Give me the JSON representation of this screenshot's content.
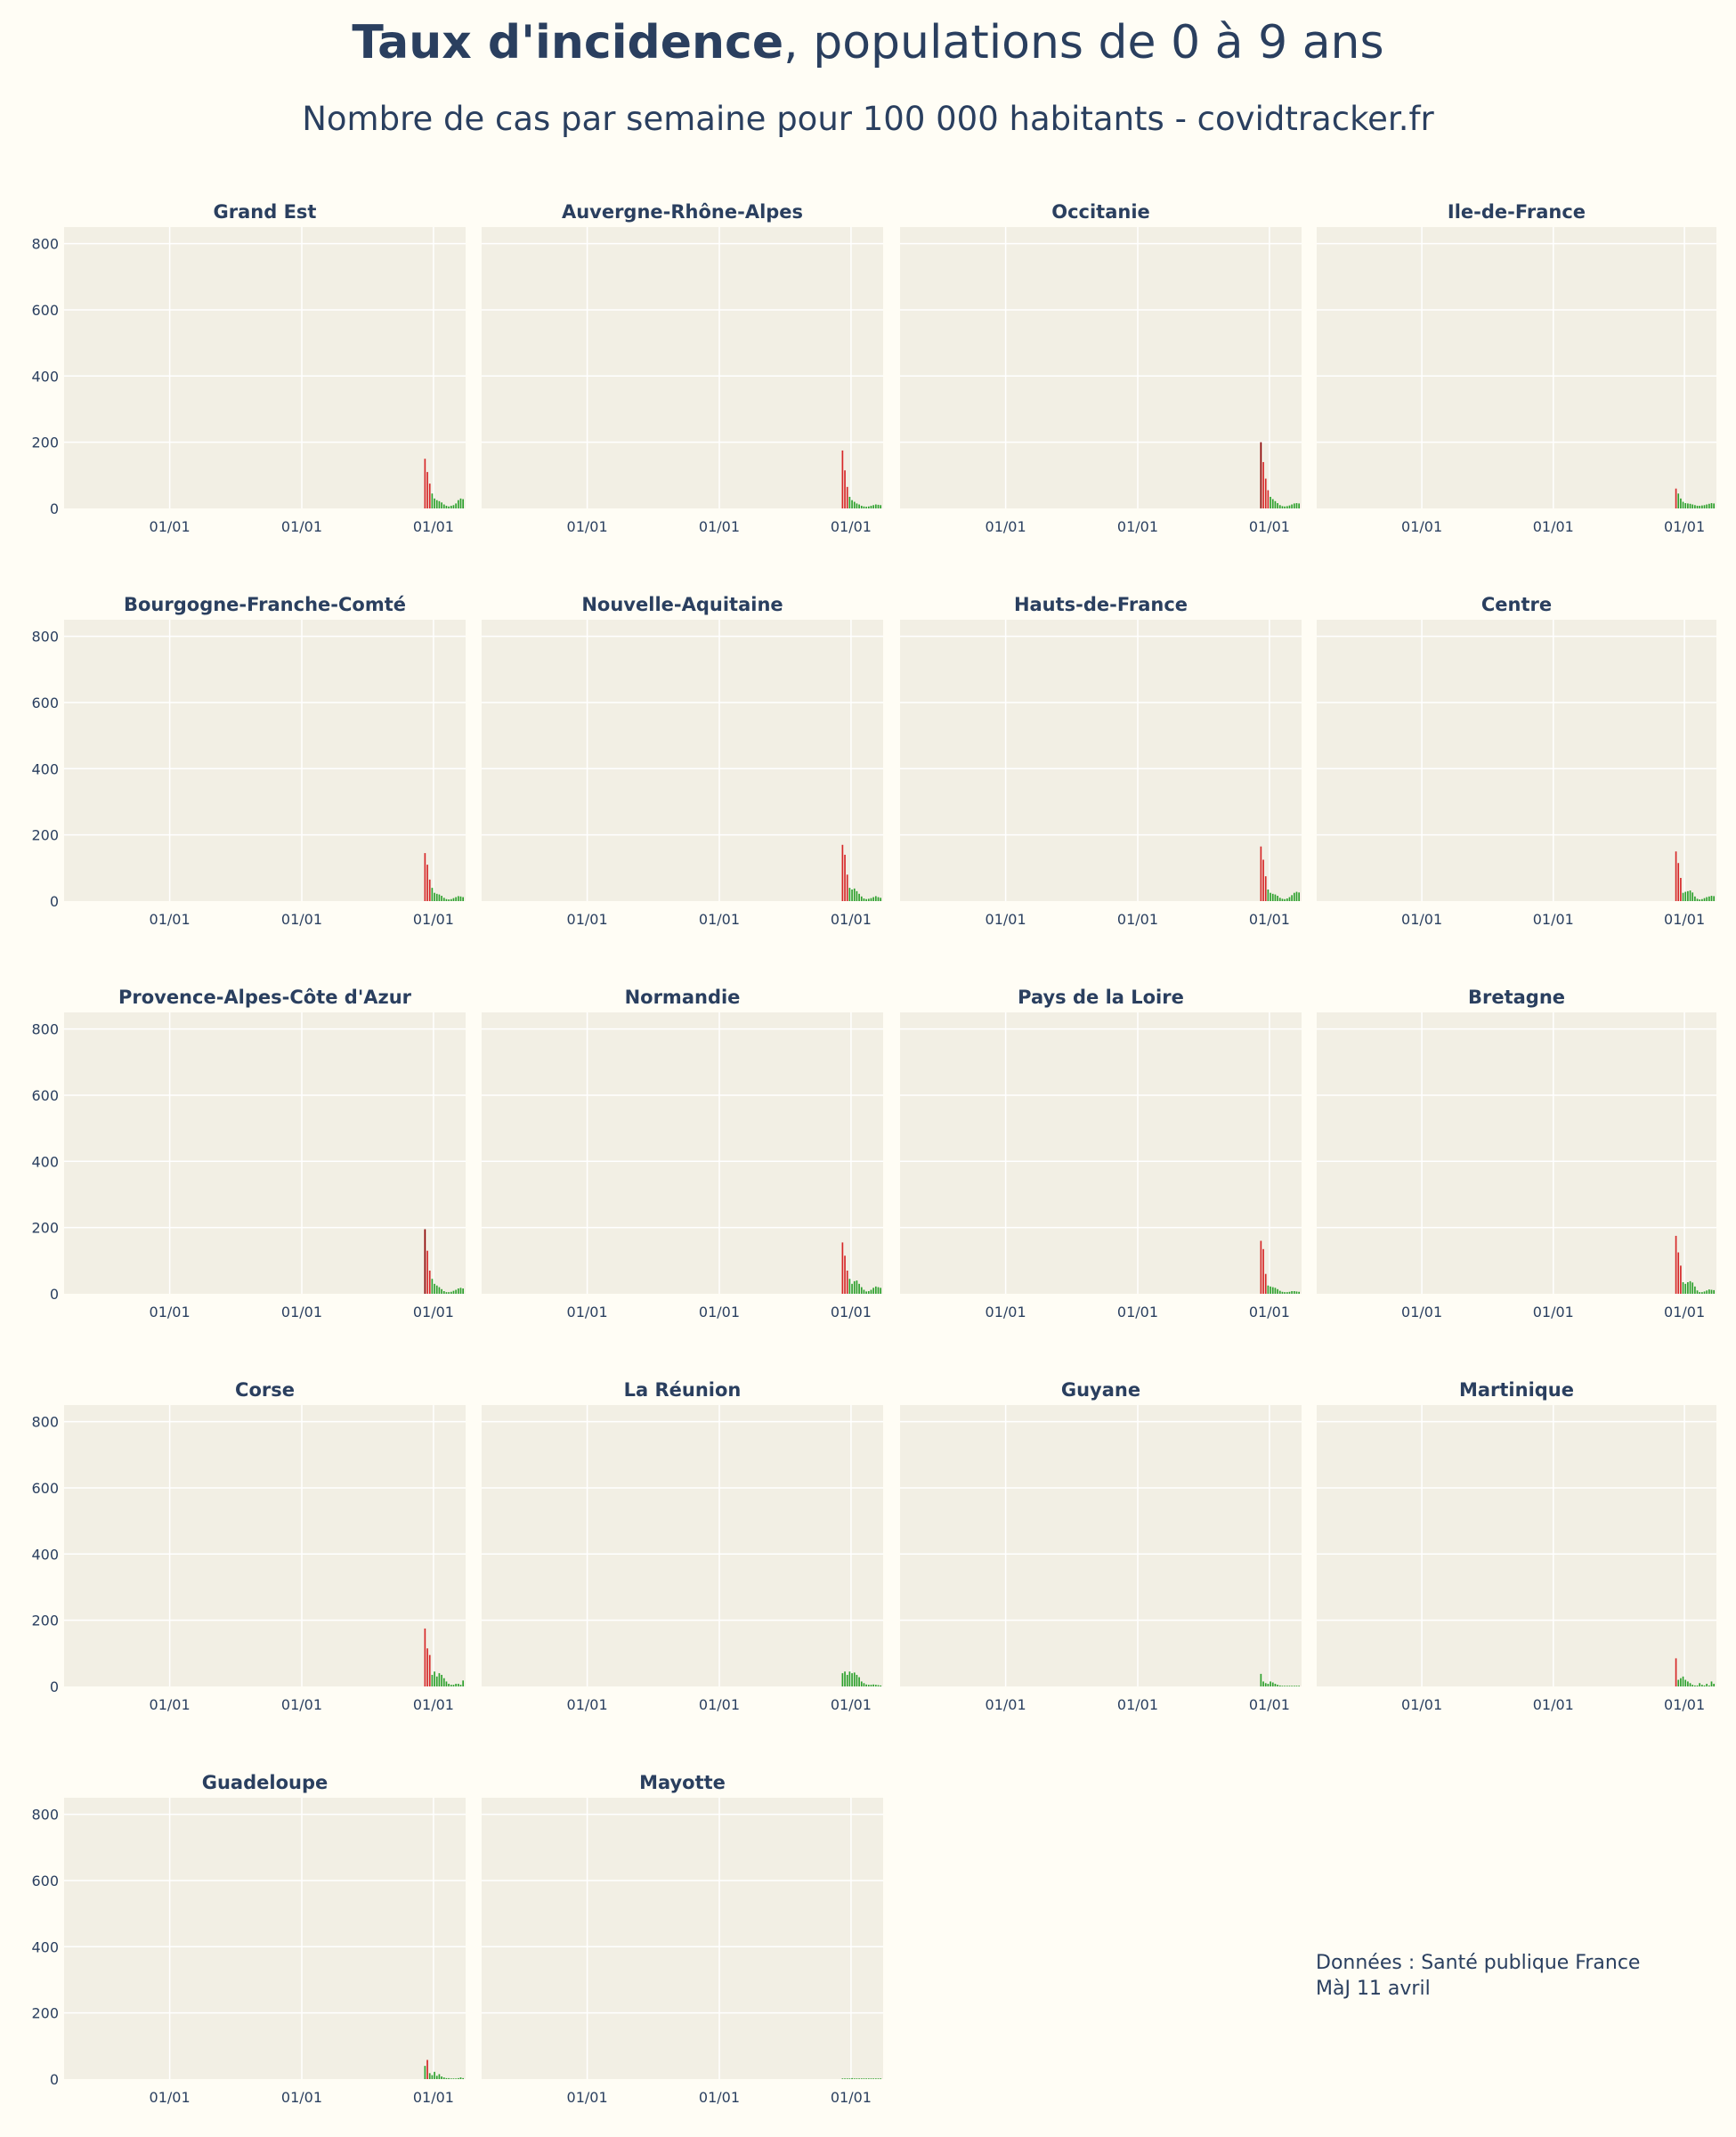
{
  "header": {
    "title_bold": "Taux d'incidence",
    "title_rest": ", populations de 0 à 9 ans",
    "subtitle": "Nombre de cas par semaine pour 100 000 habitants - covidtracker.fr"
  },
  "footer": {
    "line1": "Données : Santé publique France",
    "line2": "MàJ 11 avril"
  },
  "colors": {
    "background": "#fffdf5",
    "plot_bg": "#f2efe4",
    "grid": "#ffffff",
    "text": "#2a3f5f",
    "bar_high": "#d62728",
    "bar_dark": "#8b0000",
    "bar_low": "#2ca02c"
  },
  "chart_data": {
    "type": "bar",
    "yaxis": {
      "ticks": [
        0,
        200,
        400,
        600,
        800
      ],
      "ylim": [
        0,
        850
      ]
    },
    "xaxis": {
      "tick_labels": [
        "01/01",
        "01/01",
        "01/01"
      ]
    },
    "grid": true,
    "panels": [
      {
        "name": "Grand Est",
        "values": [
          150,
          110,
          75,
          45,
          30,
          25,
          22,
          18,
          12,
          8,
          6,
          8,
          10,
          15,
          25,
          30,
          28
        ]
      },
      {
        "name": "Auvergne-Rhône-Alpes",
        "values": [
          175,
          115,
          65,
          35,
          25,
          20,
          15,
          12,
          8,
          6,
          5,
          6,
          8,
          10,
          12,
          11,
          10
        ]
      },
      {
        "name": "Occitanie",
        "values": [
          200,
          140,
          90,
          55,
          35,
          28,
          22,
          16,
          10,
          7,
          6,
          7,
          9,
          12,
          15,
          16,
          15
        ]
      },
      {
        "name": "Ile-de-France",
        "values": [
          60,
          45,
          30,
          20,
          16,
          15,
          14,
          12,
          10,
          8,
          8,
          9,
          10,
          12,
          14,
          16,
          15
        ]
      },
      {
        "name": "Bourgogne-Franche-Comté",
        "values": [
          145,
          110,
          65,
          40,
          25,
          22,
          20,
          16,
          10,
          6,
          5,
          6,
          9,
          12,
          15,
          14,
          12
        ]
      },
      {
        "name": "Nouvelle-Aquitaine",
        "values": [
          170,
          140,
          80,
          40,
          35,
          38,
          30,
          22,
          14,
          8,
          6,
          7,
          9,
          12,
          15,
          12,
          10
        ]
      },
      {
        "name": "Hauts-de-France",
        "values": [
          165,
          125,
          75,
          35,
          25,
          22,
          20,
          16,
          10,
          7,
          6,
          8,
          12,
          18,
          25,
          28,
          26
        ]
      },
      {
        "name": "Centre",
        "values": [
          150,
          115,
          70,
          25,
          28,
          30,
          32,
          26,
          14,
          7,
          5,
          6,
          9,
          12,
          14,
          16,
          15
        ]
      },
      {
        "name": "Provence-Alpes-Côte d'Azur",
        "values": [
          195,
          130,
          70,
          45,
          30,
          25,
          20,
          14,
          8,
          5,
          5,
          6,
          9,
          12,
          16,
          18,
          16
        ]
      },
      {
        "name": "Normandie",
        "values": [
          155,
          115,
          70,
          45,
          30,
          38,
          40,
          30,
          20,
          12,
          7,
          8,
          12,
          18,
          22,
          20,
          18
        ]
      },
      {
        "name": "Pays de la Loire",
        "values": [
          160,
          135,
          60,
          25,
          22,
          20,
          18,
          14,
          9,
          6,
          5,
          5,
          6,
          8,
          8,
          7,
          6
        ]
      },
      {
        "name": "Bretagne",
        "values": [
          175,
          125,
          85,
          35,
          30,
          35,
          38,
          34,
          22,
          10,
          5,
          5,
          7,
          10,
          13,
          12,
          11
        ]
      },
      {
        "name": "Corse",
        "values": [
          175,
          115,
          95,
          35,
          45,
          30,
          40,
          35,
          25,
          15,
          8,
          5,
          5,
          8,
          8,
          5,
          18
        ]
      },
      {
        "name": "La Réunion",
        "values": [
          40,
          45,
          35,
          45,
          40,
          42,
          35,
          28,
          15,
          10,
          6,
          5,
          5,
          6,
          5,
          4,
          3
        ]
      },
      {
        "name": "Guyane",
        "values": [
          38,
          15,
          10,
          8,
          15,
          12,
          8,
          5,
          3,
          2,
          2,
          2,
          2,
          2,
          2,
          2,
          2
        ]
      },
      {
        "name": "Martinique",
        "values": [
          85,
          20,
          25,
          30,
          20,
          15,
          10,
          5,
          3,
          3,
          10,
          5,
          3,
          8,
          3,
          15,
          8
        ]
      },
      {
        "name": "Guadeloupe",
        "values": [
          40,
          58,
          18,
          12,
          22,
          10,
          15,
          8,
          5,
          3,
          3,
          2,
          2,
          2,
          3,
          5,
          3
        ]
      },
      {
        "name": "Mayotte",
        "values": [
          2,
          2,
          2,
          2,
          3,
          2,
          2,
          2,
          2,
          2,
          2,
          2,
          2,
          2,
          2,
          2,
          2
        ]
      }
    ]
  }
}
